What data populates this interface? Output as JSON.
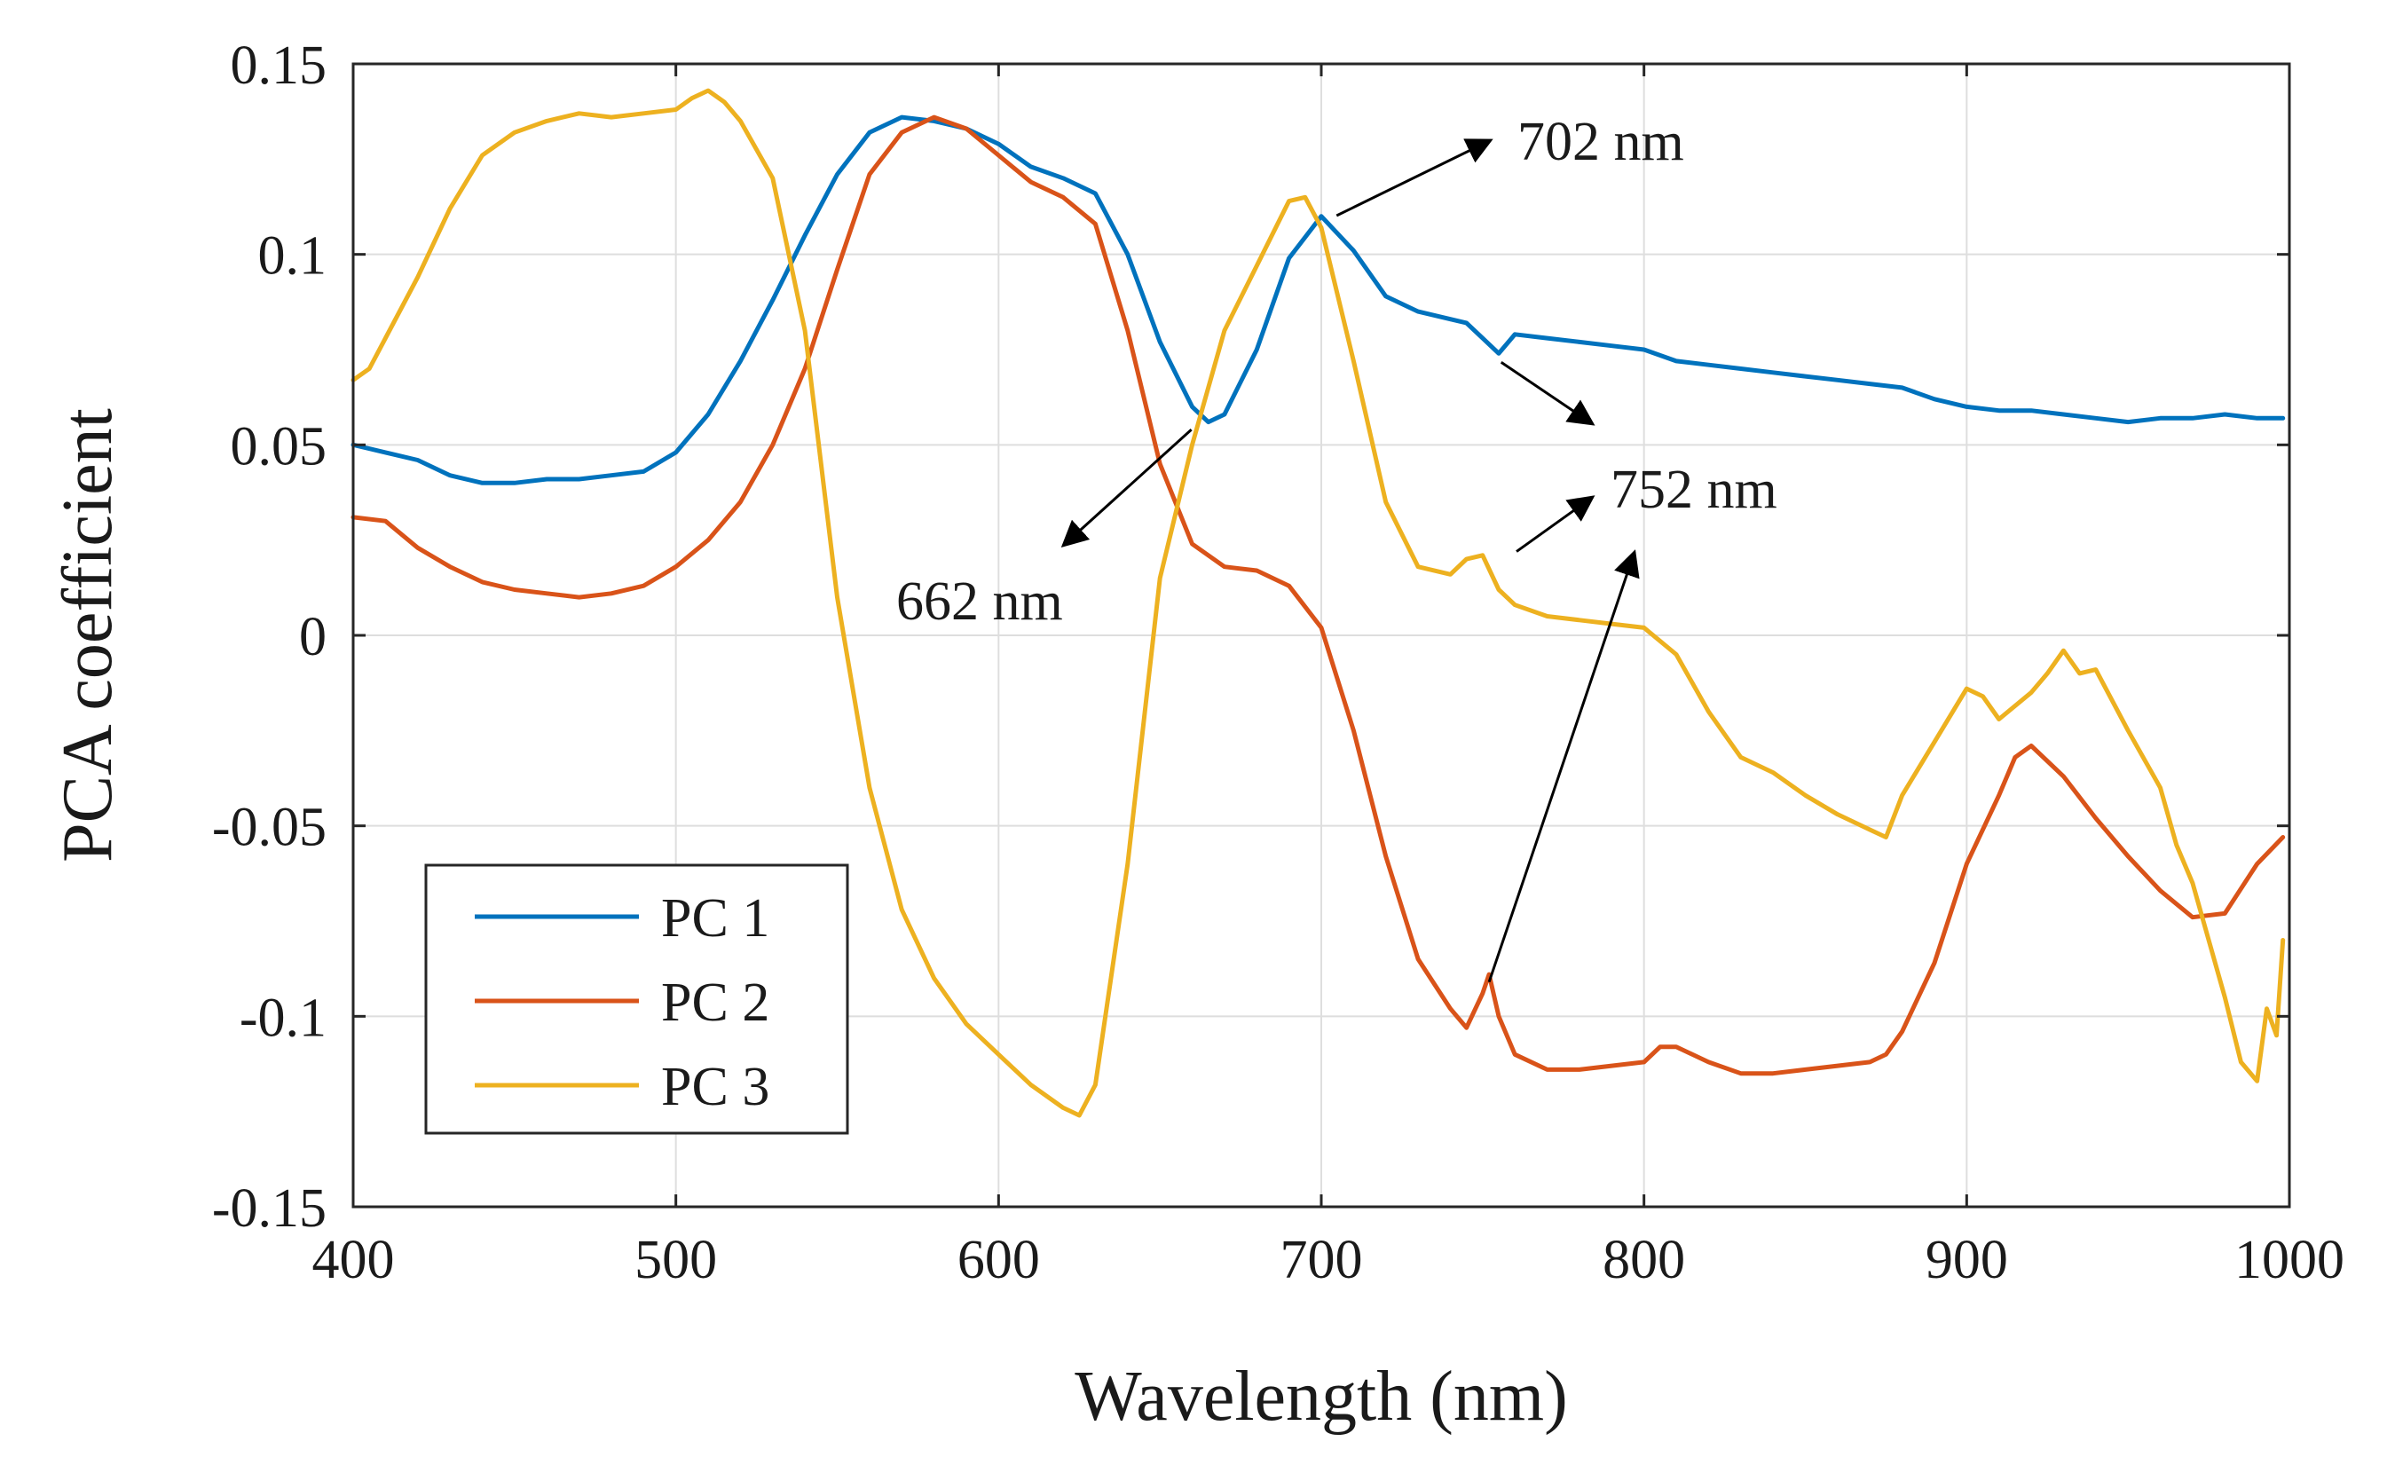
{
  "chart_data": {
    "type": "line",
    "title": "",
    "xlabel": "Wavelength (nm)",
    "ylabel": "PCA coefficient",
    "xlim": [
      400,
      1000
    ],
    "ylim": [
      -0.15,
      0.15
    ],
    "grid": true,
    "legend_position": "bottom-left",
    "xticks": [
      400,
      500,
      600,
      700,
      800,
      900,
      1000
    ],
    "xtick_labels": [
      "400",
      "500",
      "600",
      "700",
      "800",
      "900",
      "1000"
    ],
    "yticks": [
      -0.15,
      -0.1,
      -0.05,
      0,
      0.05,
      0.1,
      0.15
    ],
    "ytick_labels": [
      "-0.15",
      "-0.1",
      "-0.05",
      "0",
      "0.05",
      "0.1",
      "0.15"
    ],
    "series": [
      {
        "name": "PC 1",
        "color": "#0072BD",
        "x": [
          400,
          410,
          420,
          430,
          440,
          450,
          460,
          470,
          480,
          490,
          500,
          510,
          520,
          530,
          540,
          550,
          560,
          570,
          580,
          590,
          600,
          610,
          620,
          630,
          640,
          650,
          660,
          665,
          670,
          680,
          690,
          700,
          710,
          720,
          730,
          740,
          745,
          750,
          755,
          760,
          770,
          780,
          790,
          800,
          810,
          820,
          830,
          840,
          850,
          860,
          870,
          880,
          890,
          900,
          910,
          920,
          930,
          940,
          950,
          960,
          970,
          980,
          990,
          998
        ],
        "y": [
          0.05,
          0.048,
          0.046,
          0.042,
          0.04,
          0.04,
          0.041,
          0.041,
          0.042,
          0.043,
          0.048,
          0.058,
          0.072,
          0.088,
          0.105,
          0.121,
          0.132,
          0.136,
          0.135,
          0.133,
          0.129,
          0.123,
          0.12,
          0.116,
          0.1,
          0.077,
          0.06,
          0.056,
          0.058,
          0.075,
          0.099,
          0.11,
          0.101,
          0.089,
          0.085,
          0.083,
          0.082,
          0.078,
          0.074,
          0.079,
          0.078,
          0.077,
          0.076,
          0.075,
          0.072,
          0.071,
          0.07,
          0.069,
          0.068,
          0.067,
          0.066,
          0.065,
          0.062,
          0.06,
          0.059,
          0.059,
          0.058,
          0.057,
          0.056,
          0.057,
          0.057,
          0.058,
          0.057,
          0.057
        ]
      },
      {
        "name": "PC 2",
        "color": "#D95319",
        "x": [
          400,
          410,
          420,
          430,
          440,
          450,
          460,
          470,
          480,
          490,
          500,
          510,
          520,
          530,
          540,
          550,
          560,
          570,
          580,
          590,
          600,
          610,
          620,
          630,
          640,
          650,
          660,
          670,
          680,
          690,
          700,
          710,
          720,
          730,
          740,
          745,
          750,
          752,
          755,
          760,
          770,
          780,
          790,
          800,
          805,
          810,
          820,
          830,
          840,
          850,
          860,
          870,
          875,
          880,
          890,
          900,
          910,
          915,
          920,
          930,
          940,
          950,
          960,
          970,
          980,
          990,
          998
        ],
        "y": [
          0.031,
          0.03,
          0.023,
          0.018,
          0.014,
          0.012,
          0.011,
          0.01,
          0.011,
          0.013,
          0.018,
          0.025,
          0.035,
          0.05,
          0.07,
          0.096,
          0.121,
          0.132,
          0.136,
          0.133,
          0.126,
          0.119,
          0.115,
          0.108,
          0.08,
          0.045,
          0.024,
          0.018,
          0.017,
          0.013,
          0.002,
          -0.025,
          -0.058,
          -0.085,
          -0.098,
          -0.103,
          -0.094,
          -0.089,
          -0.1,
          -0.11,
          -0.114,
          -0.114,
          -0.113,
          -0.112,
          -0.108,
          -0.108,
          -0.112,
          -0.115,
          -0.115,
          -0.114,
          -0.113,
          -0.112,
          -0.11,
          -0.104,
          -0.086,
          -0.06,
          -0.042,
          -0.032,
          -0.029,
          -0.037,
          -0.048,
          -0.058,
          -0.067,
          -0.074,
          -0.073,
          -0.06,
          -0.053
        ]
      },
      {
        "name": "PC 3",
        "color": "#EDB120",
        "x": [
          400,
          405,
          410,
          420,
          430,
          440,
          450,
          460,
          470,
          480,
          490,
          500,
          505,
          510,
          515,
          520,
          530,
          540,
          550,
          560,
          570,
          580,
          590,
          600,
          610,
          620,
          625,
          630,
          640,
          650,
          660,
          670,
          680,
          690,
          695,
          700,
          710,
          720,
          730,
          740,
          745,
          750,
          755,
          760,
          770,
          780,
          790,
          800,
          810,
          820,
          830,
          840,
          850,
          860,
          870,
          875,
          880,
          890,
          900,
          905,
          910,
          920,
          925,
          930,
          935,
          940,
          950,
          960,
          965,
          970,
          975,
          980,
          985,
          990,
          993,
          996,
          998
        ],
        "y": [
          0.067,
          0.07,
          0.078,
          0.094,
          0.112,
          0.126,
          0.132,
          0.135,
          0.137,
          0.136,
          0.137,
          0.138,
          0.141,
          0.143,
          0.14,
          0.135,
          0.12,
          0.08,
          0.01,
          -0.04,
          -0.072,
          -0.09,
          -0.102,
          -0.11,
          -0.118,
          -0.124,
          -0.126,
          -0.118,
          -0.06,
          0.015,
          0.05,
          0.08,
          0.097,
          0.114,
          0.115,
          0.107,
          0.072,
          0.035,
          0.018,
          0.016,
          0.02,
          0.021,
          0.012,
          0.008,
          0.005,
          0.004,
          0.003,
          0.002,
          -0.005,
          -0.02,
          -0.032,
          -0.036,
          -0.042,
          -0.047,
          -0.051,
          -0.053,
          -0.042,
          -0.028,
          -0.014,
          -0.016,
          -0.022,
          -0.015,
          -0.01,
          -0.004,
          -0.01,
          -0.009,
          -0.025,
          -0.04,
          -0.055,
          -0.065,
          -0.08,
          -0.095,
          -0.112,
          -0.117,
          -0.098,
          -0.105,
          -0.08
        ]
      }
    ],
    "annotations": [
      {
        "text": "702 nm",
        "series": "PC 1",
        "point_x": 702,
        "point_y": 0.109
      },
      {
        "text": "752 nm",
        "series": "PC 1",
        "point_x": 753,
        "point_y": 0.074
      },
      {
        "text": "662 nm",
        "series": "PC 1",
        "point_x": 668,
        "point_y": 0.057
      }
    ]
  },
  "legend": {
    "items": [
      {
        "label": "PC 1",
        "color": "#0072BD"
      },
      {
        "label": "PC 2",
        "color": "#D95319"
      },
      {
        "label": "PC 3",
        "color": "#EDB120"
      }
    ]
  }
}
